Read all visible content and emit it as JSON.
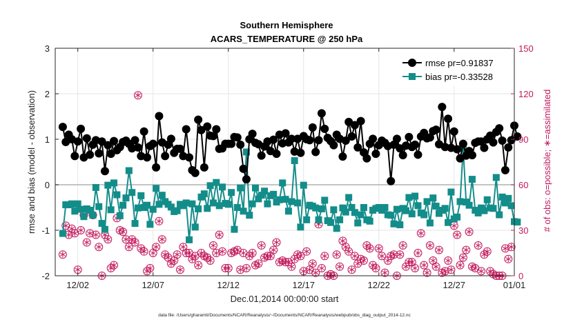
{
  "chart_data": {
    "type": "line",
    "title": "Southern Hemisphere",
    "subtitle": "ACARS_TEMPERATURE @ 250 hPa",
    "xlabel": "Dec.01,2014 00:00:00 start",
    "ylabel": "rmse and bias (model - observation)",
    "y2label": "# of obs: o=possible; ∗=assimilated",
    "footer": "data file: /Users/gharamti/Documents/NCAR/Reanalysis/~/Documents/NCAR/Reanalysis/webpub/obs_diag_output_2014-12.nc",
    "xlim": [
      0.5,
      31.0
    ],
    "ylim": [
      -2,
      3
    ],
    "y2lim": [
      0,
      150
    ],
    "x_ticks": [
      {
        "v": 2,
        "label": "12/02"
      },
      {
        "v": 7,
        "label": "12/07"
      },
      {
        "v": 12,
        "label": "12/12"
      },
      {
        "v": 17,
        "label": "12/17"
      },
      {
        "v": 22,
        "label": "12/22"
      },
      {
        "v": 27,
        "label": "12/27"
      },
      {
        "v": 31,
        "label": "01/01"
      }
    ],
    "y_ticks": [
      {
        "v": -2,
        "label": "-2"
      },
      {
        "v": -1,
        "label": "-1"
      },
      {
        "v": 0,
        "label": "0"
      },
      {
        "v": 1,
        "label": "1"
      },
      {
        "v": 2,
        "label": "2"
      },
      {
        "v": 3,
        "label": "3"
      }
    ],
    "y2_ticks": [
      {
        "v": 0,
        "label": "0"
      },
      {
        "v": 30,
        "label": "30"
      },
      {
        "v": 60,
        "label": "60"
      },
      {
        "v": 90,
        "label": "90"
      },
      {
        "v": 120,
        "label": "120"
      },
      {
        "v": 150,
        "label": "150"
      }
    ],
    "legend_position": "top-right",
    "colors": {
      "rmse": "#000000",
      "bias": "#138d8a",
      "obs": "#c2185b",
      "zero": "#b0b0b0"
    },
    "series": [
      {
        "name": "rmse pr=0.91837",
        "color": "#000000",
        "marker": "circle",
        "values": [
          1.27,
          0.94,
          1.1,
          1.0,
          0.63,
          0.95,
          1.23,
          0.6,
          1.02,
          0.66,
          0.88,
          0.98,
          0.69,
          0.95,
          0.3,
          0.87,
          0.68,
          0.96,
          0.76,
          0.83,
          0.94,
          0.97,
          0.9,
          0.8,
          0.98,
          0.82,
          0.63,
          1.17,
          0.6,
          0.85,
          0.9,
          0.38,
          1.51,
          0.93,
          0.63,
          0.88,
          1.01,
          0.7,
          0.79,
          0.79,
          0.63,
          1.22,
          0.6,
          0.32,
          0.26,
          1.43,
          1.2,
          0.38,
          1.28,
          1.08,
          1.07,
          1.22,
          0.79,
          0.8,
          0.9,
          0.9,
          0.9,
          1.05,
          1.04,
          0.88,
          0.35,
          0.12,
          1.0,
          1.12,
          0.92,
          0.89,
          0.64,
          0.84,
          0.95,
          0.74,
          0.99,
          0.68,
          1.1,
          0.91,
          1.13,
          0.93,
          1.01,
          0.73,
          1.01,
          0.7,
          1.07,
          1.0,
          0.98,
          1.26,
          0.72,
          0.98,
          1.57,
          1.23,
          1.03,
          0.96,
          0.87,
          1.1,
          1.01,
          0.62,
          0.97,
          1.38,
          1.06,
          1.31,
          0.82,
          1.4,
          0.71,
          0.58,
          0.9,
          1.01,
          0.68,
          0.87,
          0.97,
          0.92,
          0.85,
          0.08,
          0.88,
          1.01,
          0.8,
          0.65,
          0.86,
          1.05,
          0.83,
          0.88,
          0.66,
          1.06,
          1.14,
          1.02,
          1.04,
          1.18,
          1.21,
          0.89,
          1.71,
          0.83,
          1.45,
          0.81,
          1.17,
          0.78,
          0.58,
          0.9,
          0.64,
          0.74,
          0.65,
          0.92,
          0.95,
          0.95,
          0.81,
          1.0,
          1.08,
          0.93,
          1.16,
          1.24,
          0.97,
          0.32,
          0.82,
          0.98,
          1.3,
          1.06
        ]
      },
      {
        "name": "bias pr=-0.33528",
        "color": "#138d8a",
        "marker": "square",
        "values": [
          -1.07,
          -0.44,
          -0.44,
          -0.42,
          -0.58,
          -0.42,
          -0.54,
          -0.7,
          -0.53,
          -0.56,
          -0.67,
          -0.06,
          -0.48,
          -0.85,
          -0.98,
          -0.01,
          -0.55,
          0.04,
          -0.22,
          -0.68,
          -0.45,
          -0.29,
          0.31,
          -0.17,
          -0.85,
          -0.51,
          -0.24,
          -0.5,
          -0.45,
          -0.87,
          -0.54,
          -0.08,
          -0.43,
          -0.23,
          -0.37,
          -0.43,
          -0.49,
          -0.59,
          -0.57,
          -0.43,
          -0.46,
          -0.4,
          -1.21,
          -0.42,
          -0.93,
          -0.53,
          -0.27,
          -0.2,
          -0.52,
          -0.02,
          -0.4,
          0.05,
          -0.46,
          -0.05,
          -0.41,
          -0.43,
          -0.17,
          -0.98,
          -0.5,
          -0.07,
          -0.58,
          0.72,
          -0.67,
          -0.42,
          -0.07,
          -0.31,
          -0.23,
          -0.14,
          -0.42,
          -0.24,
          -0.21,
          -0.38,
          -0.33,
          0.04,
          -0.32,
          -0.58,
          -0.37,
          0.53,
          -0.4,
          -0.93,
          -0.01,
          -0.77,
          -0.45,
          -0.47,
          -0.51,
          -0.77,
          -0.53,
          -0.34,
          -0.79,
          -0.83,
          -0.55,
          -0.96,
          -0.77,
          -0.51,
          -0.6,
          -0.28,
          -0.5,
          -0.61,
          -0.84,
          -0.66,
          -0.5,
          -0.77,
          -0.8,
          -0.56,
          -0.52,
          -0.5,
          -0.56,
          -0.5,
          -0.66,
          -0.67,
          -0.86,
          -0.54,
          -0.88,
          -0.52,
          -0.57,
          -0.28,
          -0.64,
          -0.25,
          -0.46,
          -0.62,
          -0.66,
          -0.37,
          -0.84,
          -0.29,
          -0.47,
          -0.63,
          -0.56,
          -0.52,
          -0.83,
          -0.16,
          -0.75,
          -0.71,
          -0.37,
          0.8,
          -0.38,
          -0.45,
          0.12,
          -0.56,
          -0.62,
          -0.51,
          -0.57,
          -0.33,
          -0.51,
          -0.52,
          0.16,
          -0.66,
          -0.27,
          -0.4,
          -0.3,
          -0.46,
          -0.81,
          -0.82
        ]
      },
      {
        "name": "obs possible/assimilated",
        "color": "#c2185b",
        "marker": "circled-star",
        "axis": "right",
        "values": [
          14,
          33,
          27,
          31,
          28,
          4,
          30,
          40,
          22,
          28,
          40,
          27,
          19,
          0,
          27,
          24,
          5,
          7,
          38,
          30,
          29,
          24,
          19,
          24,
          22,
          119,
          18,
          16,
          3,
          5,
          15,
          19,
          36,
          24,
          14,
          12,
          8,
          10,
          14,
          4,
          19,
          15,
          15,
          11,
          13,
          7,
          15,
          13,
          12,
          10,
          20,
          15,
          27,
          16,
          5,
          5,
          15,
          16,
          17,
          4,
          15,
          5,
          13,
          15,
          7,
          8,
          20,
          12,
          13,
          13,
          17,
          22,
          9,
          10,
          9,
          9,
          6,
          11,
          14,
          13,
          3,
          16,
          4,
          8,
          2,
          34,
          5,
          13,
          0,
          1,
          0,
          14,
          6,
          23,
          19,
          16,
          4,
          13,
          8,
          11,
          10,
          20,
          18,
          7,
          5,
          18,
          13,
          2,
          10,
          13,
          14,
          0,
          14,
          20,
          6,
          9,
          9,
          5,
          15,
          28,
          7,
          2,
          20,
          10,
          6,
          17,
          2,
          3,
          10,
          4,
          33,
          27,
          7,
          12,
          17,
          29,
          6,
          5,
          20,
          3,
          14,
          16,
          3,
          1,
          0,
          0,
          0,
          18,
          11,
          19
        ]
      }
    ]
  }
}
